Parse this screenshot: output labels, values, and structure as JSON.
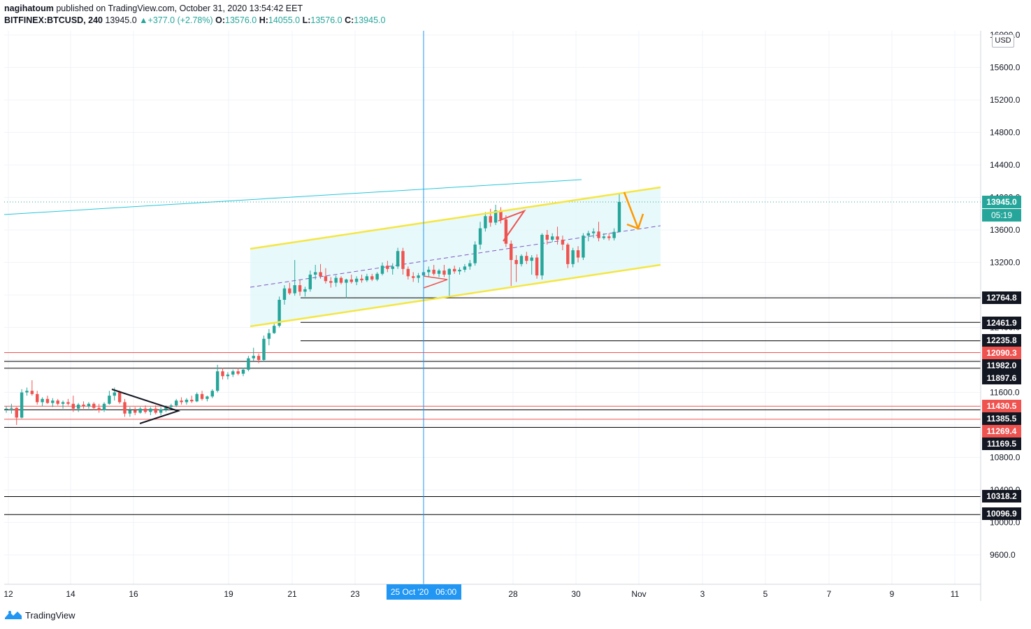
{
  "header": {
    "author": "nagihatoum",
    "published_text": "published on TradingView.com, October 31, 2020 13:54:42 EET",
    "symbol": "BITFINEX:BTCUSD, 240",
    "last": "13945.0",
    "change": "▲+377.0 (+2.78%)",
    "o_label": "O:",
    "o_value": "13576.0",
    "h_label": "H:",
    "h_value": "14055.0",
    "l_label": "L:",
    "l_value": "13576.0",
    "c_label": "C:",
    "c_value": "13945.0"
  },
  "currency": "USD",
  "footer": {
    "brand": "TradingView"
  },
  "crosshair_label": "25 Oct '20   06:00",
  "chart_data": {
    "type": "candlestick",
    "symbol": "BITFINEX:BTCUSD",
    "timeframe": "240",
    "ylim": [
      9400,
      16000
    ],
    "x_ticks": [
      "12",
      "14",
      "16",
      "19",
      "21",
      "23",
      "28",
      "30",
      "Nov",
      "3",
      "5",
      "7",
      "9",
      "11"
    ],
    "y_ticks": [
      "9600.0",
      "10000.0",
      "10400.0",
      "10800.0",
      "11200.0",
      "11600.0",
      "12000.0",
      "12400.0",
      "12800.0",
      "13200.0",
      "13600.0",
      "14000.0",
      "14400.0",
      "14800.0",
      "15200.0",
      "15600.0",
      "16000.0"
    ],
    "current_price": {
      "value": 13945.0,
      "label": "13945.0",
      "countdown": "05:19",
      "color": "#26a69a"
    },
    "levels": [
      {
        "value": 12764.8,
        "label": "12764.8",
        "color": "#000000"
      },
      {
        "value": 12461.9,
        "label": "12461.9",
        "color": "#000000"
      },
      {
        "value": 12235.8,
        "label": "12235.8",
        "color": "#000000"
      },
      {
        "value": 12090.3,
        "label": "12090.3",
        "color": "#ef5350"
      },
      {
        "value": 11982.0,
        "label": "11982.0",
        "color": "#000000"
      },
      {
        "value": 11897.6,
        "label": "11897.6",
        "color": "#000000"
      },
      {
        "value": 11430.5,
        "label": "11430.5",
        "color": "#ef5350"
      },
      {
        "value": 11385.5,
        "label": "11385.5",
        "color": "#000000"
      },
      {
        "value": 11269.4,
        "label": "11269.4",
        "color": "#ef5350"
      },
      {
        "value": 11169.5,
        "label": "11169.5",
        "color": "#000000"
      },
      {
        "value": 10318.2,
        "label": "10318.2",
        "color": "#000000"
      },
      {
        "value": 10096.9,
        "label": "10096.9",
        "color": "#000000"
      }
    ],
    "colors": {
      "up": "#26a69a",
      "down": "#ef5350",
      "channel": "#f5e642",
      "channel_fill": "#e0f7fa",
      "trendline": "#26c6da",
      "crosshair": "#2196f3",
      "arrow": "#ff9800"
    },
    "candles": [
      [
        11390,
        11430,
        11350,
        11400
      ],
      [
        11400,
        11460,
        11340,
        11410
      ],
      [
        11410,
        11420,
        11200,
        11290
      ],
      [
        11290,
        11640,
        11280,
        11600
      ],
      [
        11600,
        11660,
        11560,
        11620
      ],
      [
        11620,
        11750,
        11560,
        11580
      ],
      [
        11580,
        11620,
        11450,
        11480
      ],
      [
        11480,
        11540,
        11430,
        11520
      ],
      [
        11520,
        11560,
        11460,
        11470
      ],
      [
        11470,
        11530,
        11420,
        11500
      ],
      [
        11500,
        11520,
        11440,
        11460
      ],
      [
        11460,
        11500,
        11400,
        11480
      ],
      [
        11480,
        11520,
        11440,
        11460
      ],
      [
        11460,
        11560,
        11360,
        11400
      ],
      [
        11400,
        11470,
        11360,
        11450
      ],
      [
        11450,
        11490,
        11400,
        11430
      ],
      [
        11430,
        11480,
        11400,
        11460
      ],
      [
        11460,
        11480,
        11380,
        11410
      ],
      [
        11410,
        11460,
        11350,
        11380
      ],
      [
        11380,
        11480,
        11360,
        11460
      ],
      [
        11460,
        11620,
        11450,
        11560
      ],
      [
        11560,
        11660,
        11500,
        11600
      ],
      [
        11600,
        11620,
        11460,
        11480
      ],
      [
        11480,
        11520,
        11300,
        11340
      ],
      [
        11340,
        11420,
        11300,
        11380
      ],
      [
        11380,
        11420,
        11320,
        11350
      ],
      [
        11350,
        11420,
        11340,
        11400
      ],
      [
        11400,
        11440,
        11340,
        11360
      ],
      [
        11360,
        11420,
        11320,
        11400
      ],
      [
        11400,
        11440,
        11330,
        11350
      ],
      [
        11350,
        11420,
        11320,
        11390
      ],
      [
        11390,
        11440,
        11360,
        11420
      ],
      [
        11420,
        11460,
        11390,
        11440
      ],
      [
        11440,
        11520,
        11420,
        11500
      ],
      [
        11500,
        11540,
        11450,
        11480
      ],
      [
        11480,
        11530,
        11450,
        11510
      ],
      [
        11510,
        11560,
        11470,
        11490
      ],
      [
        11490,
        11600,
        11480,
        11580
      ],
      [
        11580,
        11620,
        11500,
        11520
      ],
      [
        11520,
        11560,
        11490,
        11550
      ],
      [
        11550,
        11640,
        11530,
        11620
      ],
      [
        11620,
        11940,
        11600,
        11860
      ],
      [
        11860,
        11900,
        11760,
        11800
      ],
      [
        11800,
        11850,
        11760,
        11820
      ],
      [
        11820,
        11880,
        11790,
        11860
      ],
      [
        11860,
        11900,
        11810,
        11830
      ],
      [
        11830,
        11900,
        11800,
        11880
      ],
      [
        11880,
        12050,
        11860,
        12020
      ],
      [
        12020,
        12150,
        11990,
        12050
      ],
      [
        12050,
        12080,
        11960,
        12000
      ],
      [
        12000,
        12300,
        11980,
        12260
      ],
      [
        12260,
        12380,
        12180,
        12330
      ],
      [
        12330,
        12460,
        12320,
        12420
      ],
      [
        12420,
        12780,
        12400,
        12740
      ],
      [
        12740,
        12920,
        12680,
        12880
      ],
      [
        12880,
        12950,
        12800,
        12820
      ],
      [
        12820,
        13230,
        12790,
        12920
      ],
      [
        12920,
        12980,
        12790,
        12840
      ],
      [
        12840,
        12900,
        12780,
        12870
      ],
      [
        12870,
        13100,
        12840,
        13050
      ],
      [
        13050,
        13170,
        12990,
        13080
      ],
      [
        13080,
        13180,
        13000,
        13030
      ],
      [
        13030,
        13130,
        12940,
        12970
      ],
      [
        12970,
        13020,
        12890,
        12950
      ],
      [
        12950,
        13040,
        12900,
        13010
      ],
      [
        13010,
        13030,
        12930,
        12950
      ],
      [
        12950,
        13000,
        12760,
        12990
      ],
      [
        12990,
        13050,
        12940,
        12960
      ],
      [
        12960,
        13030,
        12920,
        13000
      ],
      [
        13000,
        13050,
        12950,
        12980
      ],
      [
        12980,
        13060,
        12960,
        13030
      ],
      [
        13030,
        13060,
        12970,
        12990
      ],
      [
        12990,
        13080,
        12970,
        13060
      ],
      [
        13060,
        13200,
        13040,
        13160
      ],
      [
        13160,
        13220,
        13080,
        13120
      ],
      [
        13120,
        13190,
        13050,
        13150
      ],
      [
        13150,
        13380,
        13120,
        13340
      ],
      [
        13340,
        13380,
        13050,
        13120
      ],
      [
        13120,
        13150,
        12990,
        13030
      ],
      [
        13030,
        13080,
        12960,
        13010
      ],
      [
        13010,
        13070,
        12950,
        13040
      ],
      [
        13040,
        13130,
        12990,
        13080
      ],
      [
        13080,
        13150,
        13020,
        13110
      ],
      [
        13110,
        13170,
        13040,
        13060
      ],
      [
        13060,
        13120,
        13020,
        13100
      ],
      [
        13100,
        13170,
        13020,
        13050
      ],
      [
        13050,
        13130,
        12790,
        13120
      ],
      [
        13120,
        13160,
        13060,
        13090
      ],
      [
        13090,
        13140,
        13050,
        13110
      ],
      [
        13110,
        13180,
        13080,
        13150
      ],
      [
        13150,
        13230,
        13110,
        13190
      ],
      [
        13190,
        13460,
        13160,
        13420
      ],
      [
        13420,
        13700,
        13360,
        13620
      ],
      [
        13620,
        13820,
        13580,
        13770
      ],
      [
        13770,
        13860,
        13640,
        13690
      ],
      [
        13690,
        13910,
        13660,
        13840
      ],
      [
        13840,
        13880,
        13680,
        13730
      ],
      [
        13730,
        13780,
        13390,
        13430
      ],
      [
        13430,
        13470,
        12910,
        13230
      ],
      [
        13230,
        13290,
        12960,
        13180
      ],
      [
        13180,
        13300,
        13150,
        13280
      ],
      [
        13280,
        13330,
        13180,
        13220
      ],
      [
        13220,
        13290,
        13050,
        13260
      ],
      [
        13260,
        13300,
        13000,
        13040
      ],
      [
        13040,
        13560,
        12990,
        13540
      ],
      [
        13540,
        13600,
        13420,
        13480
      ],
      [
        13480,
        13560,
        13450,
        13520
      ],
      [
        13520,
        13640,
        13420,
        13480
      ],
      [
        13480,
        13530,
        13350,
        13420
      ],
      [
        13420,
        13440,
        13130,
        13180
      ],
      [
        13180,
        13380,
        13140,
        13350
      ],
      [
        13350,
        13400,
        13200,
        13260
      ],
      [
        13260,
        13560,
        13230,
        13530
      ],
      [
        13530,
        13590,
        13460,
        13560
      ],
      [
        13560,
        13620,
        13500,
        13580
      ],
      [
        13580,
        13700,
        13460,
        13500
      ],
      [
        13500,
        13560,
        13480,
        13520
      ],
      [
        13520,
        13560,
        13470,
        13500
      ],
      [
        13500,
        13620,
        13470,
        13576
      ],
      [
        13576,
        14055,
        13576,
        13945
      ]
    ]
  }
}
